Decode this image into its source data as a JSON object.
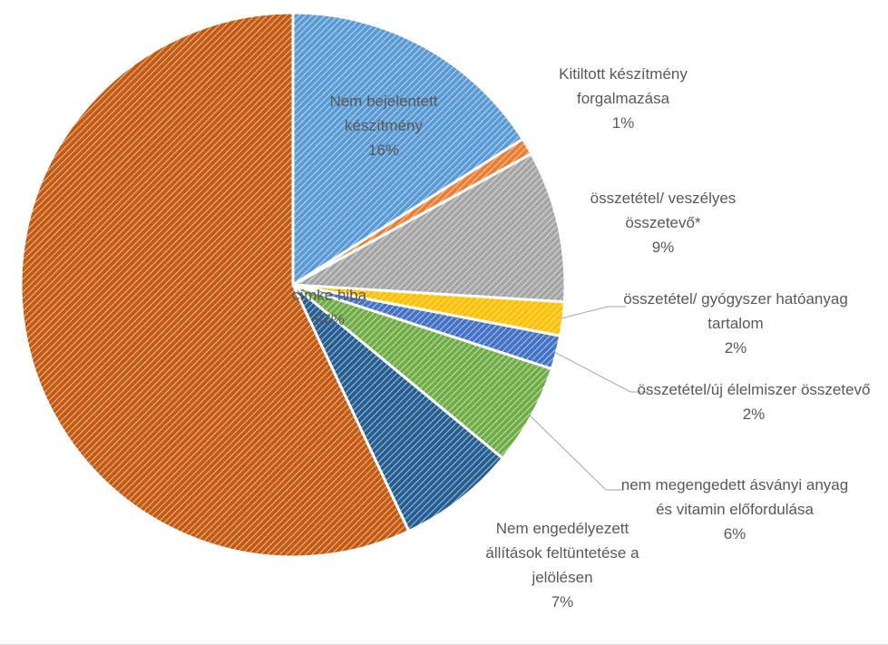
{
  "chart_data": {
    "type": "pie",
    "categories": [
      "Nem bejelentett készítmény",
      "Kitiltott készítmény forgalmazása",
      "összetétel/ veszélyes összetevő*",
      "összetétel/ gyógyszer hatóanyag tartalom",
      "összetétel/új élelmiszer összetevő",
      "nem megengedett ásványi anyag és vitamin előfordulása",
      "Nem engedélyezett állítások feltüntetése a jelölésen",
      "címke hiba"
    ],
    "values": [
      16,
      1,
      9,
      2,
      2,
      6,
      7,
      57
    ],
    "value_labels": [
      "16%",
      "1%",
      "9%",
      "2%",
      "2%",
      "6%",
      "7%",
      "57%"
    ],
    "colors": [
      "#5b9bd5",
      "#ed7d31",
      "#a5a5a5",
      "#ffc000",
      "#4472c4",
      "#70ad47",
      "#255e91",
      "#c55a11"
    ]
  }
}
